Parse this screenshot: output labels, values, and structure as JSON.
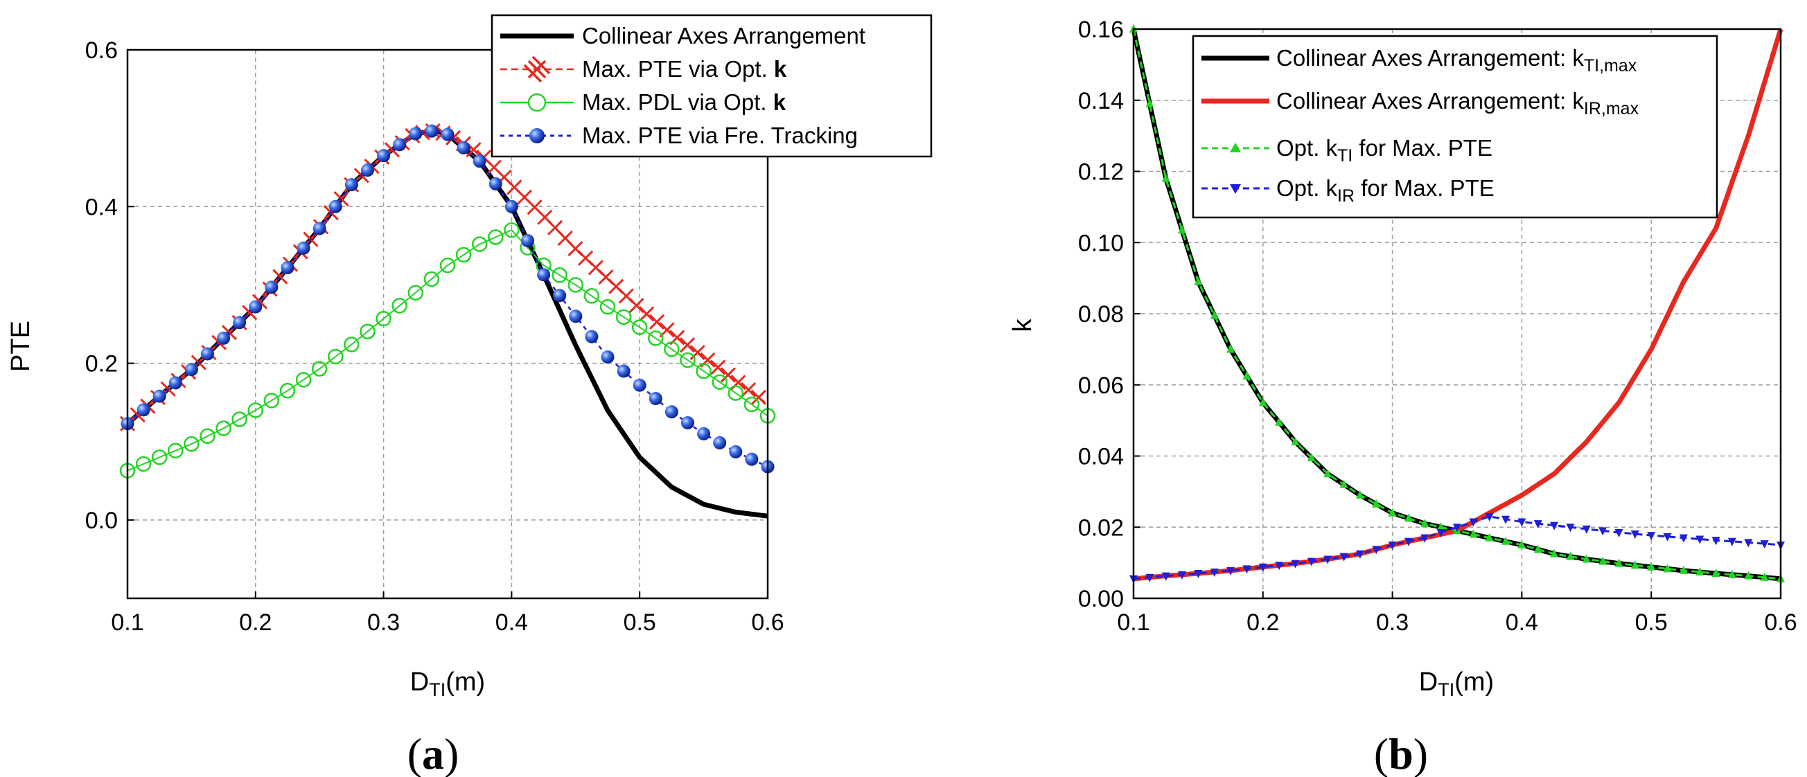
{
  "colors": {
    "black": "#000000",
    "red": "#e8281e",
    "green": "#22d422",
    "blue": "#1f1fd8",
    "ball_light": "#9ec0ff",
    "ball_dark": "#0a1e8c"
  },
  "chart_data": [
    {
      "type": "line",
      "panel_label_open": "(",
      "panel_label_letter": "a",
      "panel_label_close": ")",
      "ylabel": "PTE",
      "xlabel_main": "D",
      "xlabel_sub": "TI",
      "xlabel_unit": "(m)",
      "xlim": [
        0.1,
        0.6
      ],
      "ylim": [
        -0.1,
        0.6
      ],
      "xticks": [
        "0.1",
        "0.2",
        "0.3",
        "0.4",
        "0.5",
        "0.6"
      ],
      "yticks": [
        "0.0",
        "0.2",
        "0.4",
        "0.6"
      ],
      "ytick_values": [
        0.0,
        0.2,
        0.4,
        0.6
      ],
      "xtick_values": [
        0.1,
        0.2,
        0.3,
        0.4,
        0.5,
        0.6
      ],
      "legend_position": "top-right",
      "legend": [
        {
          "text": "Collinear Axes Arrangement",
          "bold_suffix": ""
        },
        {
          "text": "Max. PTE via Opt. ",
          "bold_suffix": "k"
        },
        {
          "text": "Max. PDL via Opt. ",
          "bold_suffix": "k"
        },
        {
          "text": "Max. PTE via Fre. Tracking",
          "bold_suffix": ""
        }
      ],
      "series": [
        {
          "name": "Collinear Axes Arrangement",
          "style": "solid-black",
          "x": [
            0.1,
            0.125,
            0.15,
            0.175,
            0.2,
            0.225,
            0.25,
            0.275,
            0.3,
            0.325,
            0.34,
            0.35,
            0.375,
            0.4,
            0.425,
            0.45,
            0.475,
            0.5,
            0.525,
            0.55,
            0.575,
            0.6
          ],
          "y": [
            0.123,
            0.158,
            0.192,
            0.232,
            0.272,
            0.322,
            0.372,
            0.428,
            0.465,
            0.493,
            0.497,
            0.492,
            0.458,
            0.4,
            0.313,
            0.223,
            0.14,
            0.08,
            0.042,
            0.02,
            0.01,
            0.005
          ]
        },
        {
          "name": "Max. PTE via Opt. k",
          "style": "red-x",
          "x": [
            0.1,
            0.125,
            0.15,
            0.175,
            0.2,
            0.225,
            0.25,
            0.275,
            0.3,
            0.325,
            0.34,
            0.35,
            0.375,
            0.4,
            0.425,
            0.45,
            0.475,
            0.5,
            0.525,
            0.55,
            0.575,
            0.6
          ],
          "y": [
            0.123,
            0.158,
            0.192,
            0.232,
            0.272,
            0.322,
            0.372,
            0.428,
            0.465,
            0.493,
            0.497,
            0.492,
            0.468,
            0.428,
            0.388,
            0.346,
            0.308,
            0.27,
            0.238,
            0.208,
            0.178,
            0.148
          ]
        },
        {
          "name": "Max. PDL via Opt. k",
          "style": "green-circle",
          "x": [
            0.1,
            0.125,
            0.15,
            0.175,
            0.2,
            0.225,
            0.25,
            0.275,
            0.3,
            0.325,
            0.35,
            0.375,
            0.4,
            0.425,
            0.45,
            0.475,
            0.5,
            0.525,
            0.55,
            0.575,
            0.6
          ],
          "y": [
            0.063,
            0.08,
            0.097,
            0.117,
            0.14,
            0.165,
            0.193,
            0.224,
            0.257,
            0.29,
            0.325,
            0.352,
            0.37,
            0.325,
            0.3,
            0.272,
            0.246,
            0.218,
            0.19,
            0.162,
            0.133
          ]
        },
        {
          "name": "Max. PTE via Fre. Tracking",
          "style": "blue-ball",
          "x": [
            0.1,
            0.125,
            0.15,
            0.175,
            0.2,
            0.225,
            0.25,
            0.275,
            0.3,
            0.325,
            0.34,
            0.35,
            0.375,
            0.4,
            0.425,
            0.45,
            0.475,
            0.5,
            0.525,
            0.55,
            0.575,
            0.6
          ],
          "y": [
            0.123,
            0.158,
            0.192,
            0.232,
            0.272,
            0.322,
            0.372,
            0.428,
            0.465,
            0.493,
            0.497,
            0.492,
            0.458,
            0.4,
            0.313,
            0.26,
            0.208,
            0.172,
            0.138,
            0.11,
            0.087,
            0.068
          ]
        }
      ]
    },
    {
      "type": "line",
      "panel_label_open": "(",
      "panel_label_letter": "b",
      "panel_label_close": ")",
      "ylabel": "k",
      "xlabel_main": "D",
      "xlabel_sub": "TI",
      "xlabel_unit": "(m)",
      "xlim": [
        0.1,
        0.6
      ],
      "ylim": [
        0.0,
        0.16
      ],
      "xticks": [
        "0.1",
        "0.2",
        "0.3",
        "0.4",
        "0.5",
        "0.6"
      ],
      "yticks": [
        "0.00",
        "0.02",
        "0.04",
        "0.06",
        "0.08",
        "0.10",
        "0.12",
        "0.14",
        "0.16"
      ],
      "ytick_values": [
        0.0,
        0.02,
        0.04,
        0.06,
        0.08,
        0.1,
        0.12,
        0.14,
        0.16
      ],
      "xtick_values": [
        0.1,
        0.2,
        0.3,
        0.4,
        0.5,
        0.6
      ],
      "legend_position": "top-right",
      "legend": [
        {
          "text": "Collinear Axes Arrangement: k",
          "sub": "TI,max"
        },
        {
          "text": "Collinear Axes Arrangement: k",
          "sub": "IR,max"
        },
        {
          "text": "Opt. k",
          "sub": "TI",
          "after": " for Max. PTE"
        },
        {
          "text": "Opt. k",
          "sub": "IR",
          "after": " for Max. PTE"
        }
      ],
      "series": [
        {
          "name": "Collinear Axes Arrangement: k_TI,max",
          "style": "solid-black",
          "x": [
            0.1,
            0.125,
            0.15,
            0.175,
            0.2,
            0.225,
            0.25,
            0.275,
            0.3,
            0.325,
            0.35,
            0.375,
            0.4,
            0.425,
            0.45,
            0.475,
            0.5,
            0.525,
            0.55,
            0.575,
            0.6
          ],
          "y": [
            0.16,
            0.118,
            0.089,
            0.07,
            0.055,
            0.044,
            0.035,
            0.029,
            0.024,
            0.021,
            0.019,
            0.017,
            0.015,
            0.0125,
            0.011,
            0.0098,
            0.0088,
            0.0078,
            0.007,
            0.0063,
            0.0055
          ]
        },
        {
          "name": "Collinear Axes Arrangement: k_IR,max",
          "style": "solid-red",
          "x": [
            0.1,
            0.125,
            0.15,
            0.175,
            0.2,
            0.225,
            0.25,
            0.275,
            0.3,
            0.325,
            0.35,
            0.375,
            0.4,
            0.425,
            0.45,
            0.475,
            0.5,
            0.525,
            0.55,
            0.575,
            0.6
          ],
          "y": [
            0.0055,
            0.0063,
            0.007,
            0.0078,
            0.0088,
            0.0098,
            0.011,
            0.0125,
            0.015,
            0.017,
            0.019,
            0.024,
            0.029,
            0.035,
            0.044,
            0.055,
            0.07,
            0.089,
            0.104,
            0.13,
            0.16
          ]
        },
        {
          "name": "Opt. k_TI for Max. PTE",
          "style": "green-triangle",
          "x": [
            0.1,
            0.125,
            0.15,
            0.175,
            0.2,
            0.225,
            0.25,
            0.275,
            0.3,
            0.325,
            0.35,
            0.375,
            0.4,
            0.425,
            0.45,
            0.475,
            0.5,
            0.525,
            0.55,
            0.575,
            0.6
          ],
          "y": [
            0.16,
            0.118,
            0.089,
            0.07,
            0.055,
            0.044,
            0.035,
            0.029,
            0.024,
            0.021,
            0.019,
            0.017,
            0.015,
            0.0125,
            0.011,
            0.0098,
            0.0088,
            0.0078,
            0.007,
            0.0063,
            0.0055
          ]
        },
        {
          "name": "Opt. k_IR for Max. PTE",
          "style": "blue-triangle",
          "x": [
            0.1,
            0.125,
            0.15,
            0.175,
            0.2,
            0.225,
            0.25,
            0.275,
            0.3,
            0.325,
            0.35,
            0.375,
            0.4,
            0.425,
            0.45,
            0.475,
            0.5,
            0.525,
            0.55,
            0.575,
            0.6
          ],
          "y": [
            0.0055,
            0.0063,
            0.007,
            0.0078,
            0.0088,
            0.0098,
            0.011,
            0.0125,
            0.015,
            0.017,
            0.02,
            0.023,
            0.0215,
            0.0205,
            0.0195,
            0.0185,
            0.0177,
            0.017,
            0.0163,
            0.0157,
            0.015
          ]
        }
      ]
    }
  ]
}
